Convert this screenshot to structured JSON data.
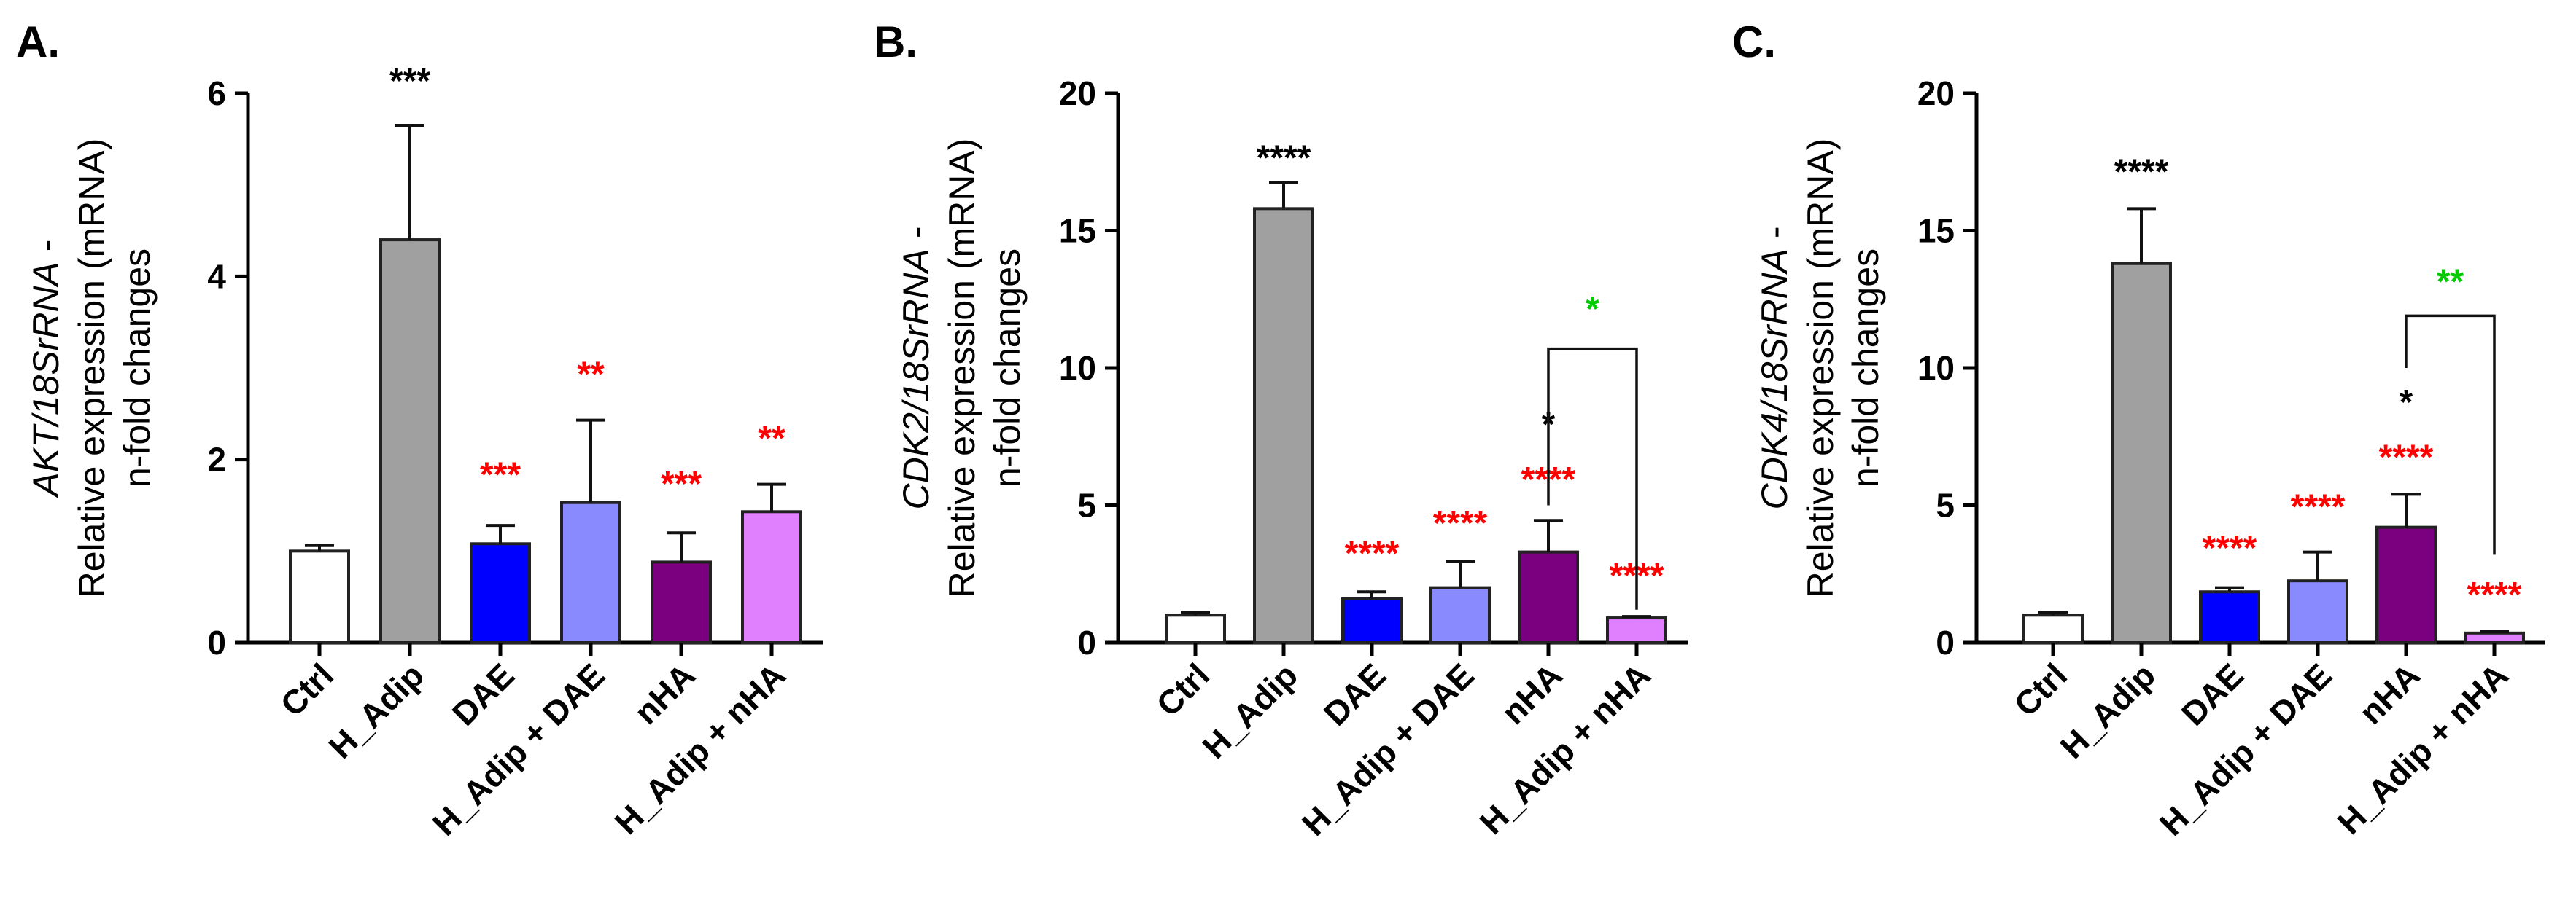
{
  "figure_label": "Relative gene expression bar charts (three panels)",
  "chart_data": [
    {
      "type": "bar",
      "panel": "A.",
      "ylabel_gene": "AKT/18SrRNA",
      "ylabel_rest": " -",
      "ylabel_line2": "Relative expression (mRNA)",
      "ylabel_line3": "n-fold changes",
      "ylim": [
        0,
        6
      ],
      "yticks": [
        0,
        2,
        4,
        6
      ],
      "categories": [
        "Ctrl",
        "H_Adip",
        "DAE",
        "H_Adip + DAE",
        "nHA",
        "H_Adip + nHA"
      ],
      "colors": [
        "#ffffff",
        "#a0a0a0",
        "#0000ff",
        "#8a8aff",
        "#7a0080",
        "#e080ff"
      ],
      "values": [
        1.0,
        4.4,
        1.08,
        1.53,
        0.88,
        1.43
      ],
      "errors": [
        0.06,
        1.25,
        0.2,
        0.9,
        0.32,
        0.3
      ],
      "significance": [
        {
          "index": 1,
          "text": "***",
          "color": "#000000",
          "value": 6.15
        },
        {
          "index": 2,
          "text": "***",
          "color": "#ff0000",
          "value": 1.85
        },
        {
          "index": 3,
          "text": "**",
          "color": "#ff0000",
          "value": 2.95
        },
        {
          "index": 4,
          "text": "***",
          "color": "#ff0000",
          "value": 1.75
        },
        {
          "index": 5,
          "text": "**",
          "color": "#ff0000",
          "value": 2.25
        }
      ],
      "bracket": null
    },
    {
      "type": "bar",
      "panel": "B.",
      "ylabel_gene": "CDK2/18SrRNA",
      "ylabel_rest": " -",
      "ylabel_line2": "Relative expression (mRNA)",
      "ylabel_line3": "n-fold changes",
      "ylim": [
        0,
        20
      ],
      "yticks": [
        0,
        5,
        10,
        15,
        20
      ],
      "categories": [
        "Ctrl",
        "H_Adip",
        "DAE",
        "H_Adip + DAE",
        "nHA",
        "H_Adip + nHA"
      ],
      "colors": [
        "#ffffff",
        "#a0a0a0",
        "#0000ff",
        "#8a8aff",
        "#7a0080",
        "#e080ff"
      ],
      "values": [
        1.0,
        15.8,
        1.6,
        2.0,
        3.3,
        0.9
      ],
      "errors": [
        0.1,
        0.95,
        0.25,
        0.95,
        1.15,
        0.05
      ],
      "significance": [
        {
          "index": 1,
          "text": "****",
          "color": "#000000",
          "value": 17.7
        },
        {
          "index": 2,
          "text": "****",
          "color": "#ff0000",
          "value": 3.3
        },
        {
          "index": 3,
          "text": "****",
          "color": "#ff0000",
          "value": 4.4
        },
        {
          "index": 4,
          "text": "*",
          "color": "#000000",
          "value": 8.0
        },
        {
          "index": 4,
          "text": "****",
          "color": "#ff0000",
          "value": 6.0
        },
        {
          "index": 5,
          "text": "****",
          "color": "#ff0000",
          "value": 2.5
        }
      ],
      "bracket": {
        "from": 4,
        "to": 5,
        "top": 10.7,
        "from_bottom": 5.0,
        "to_bottom": 1.2,
        "text": "*",
        "color": "#00cc00",
        "text_value": 12.2
      }
    },
    {
      "type": "bar",
      "panel": "C.",
      "ylabel_gene": "CDK4/18SrRNA",
      "ylabel_rest": " -",
      "ylabel_line2": "Relative expression (mRNA)",
      "ylabel_line3": "n-fold changes",
      "ylim": [
        0,
        20
      ],
      "yticks": [
        0,
        5,
        10,
        15,
        20
      ],
      "categories": [
        "Ctrl",
        "H_Adip",
        "DAE",
        "H_Adip + DAE",
        "nHA",
        "H_Adip + nHA"
      ],
      "colors": [
        "#ffffff",
        "#a0a0a0",
        "#0000ff",
        "#8a8aff",
        "#7a0080",
        "#e080ff"
      ],
      "values": [
        1.0,
        13.8,
        1.85,
        2.25,
        4.2,
        0.35
      ],
      "errors": [
        0.1,
        2.0,
        0.15,
        1.05,
        1.2,
        0.05
      ],
      "significance": [
        {
          "index": 1,
          "text": "****",
          "color": "#000000",
          "value": 17.2
        },
        {
          "index": 2,
          "text": "****",
          "color": "#ff0000",
          "value": 3.5
        },
        {
          "index": 3,
          "text": "****",
          "color": "#ff0000",
          "value": 5.0
        },
        {
          "index": 4,
          "text": "*",
          "color": "#000000",
          "value": 8.8
        },
        {
          "index": 4,
          "text": "****",
          "color": "#ff0000",
          "value": 6.8
        },
        {
          "index": 5,
          "text": "****",
          "color": "#ff0000",
          "value": 1.8
        }
      ],
      "bracket": {
        "from": 4,
        "to": 5,
        "top": 11.9,
        "from_bottom": 10.0,
        "to_bottom": 3.2,
        "text": "**",
        "color": "#00cc00",
        "text_value": 13.2
      }
    }
  ]
}
